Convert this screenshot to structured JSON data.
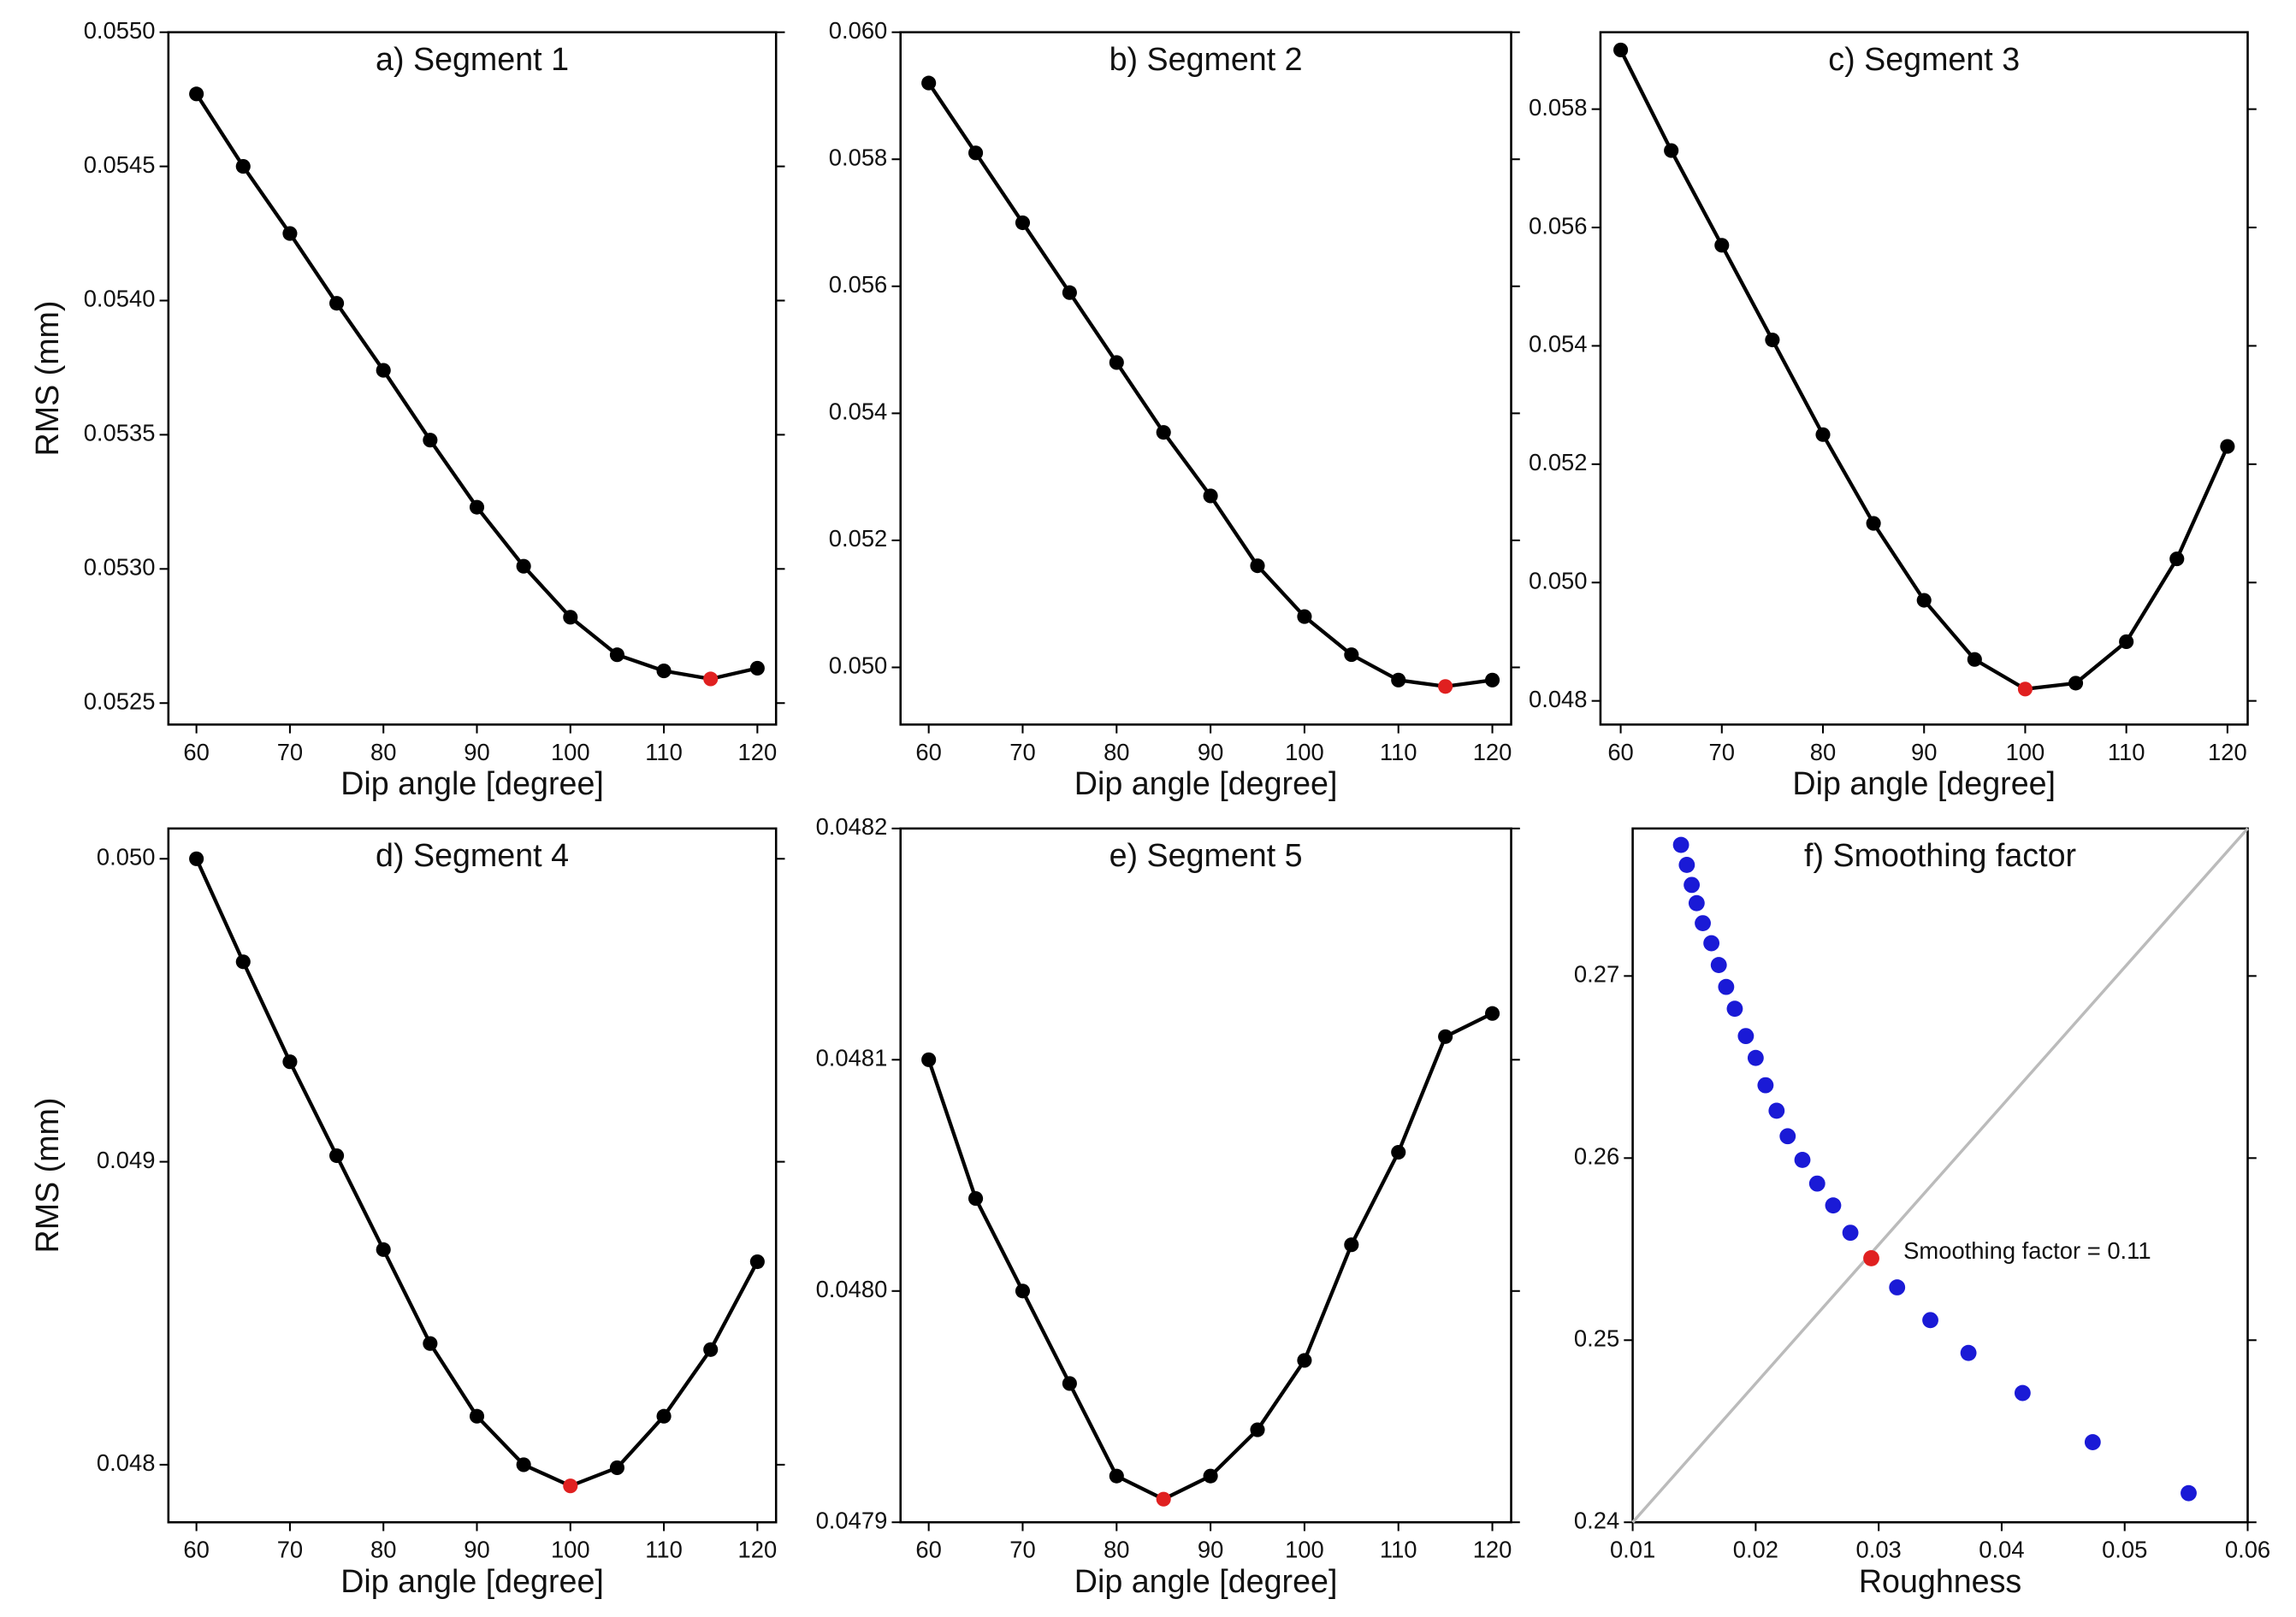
{
  "chart_data": [
    {
      "type": "line",
      "title": "a) Segment 1",
      "ylabel": "RMS (mm)",
      "xlabel": "Dip angle  [degree]",
      "x": [
        60,
        65,
        70,
        75,
        80,
        85,
        90,
        95,
        100,
        105,
        110,
        115,
        120
      ],
      "series": [
        {
          "color": "#000000",
          "values": [
            0.05477,
            0.0545,
            0.05425,
            0.05399,
            0.05374,
            0.05348,
            0.05323,
            0.05301,
            0.05282,
            0.05268,
            0.05262,
            0.05259,
            0.05263
          ]
        }
      ],
      "highlight": 11,
      "highlight_color": "#e02020",
      "xlim": [
        57,
        122
      ],
      "xticks": [
        60,
        70,
        80,
        90,
        100,
        110,
        120
      ],
      "ylim": [
        0.05242,
        0.055
      ],
      "yticks": [
        0.0525,
        {
          "value": 0.053,
          "label": "0.0530"
        },
        0.0535,
        {
          "value": 0.054,
          "label": "0.0540"
        },
        0.0545,
        {
          "value": 0.055,
          "label": "0.0550"
        }
      ]
    },
    {
      "type": "line",
      "title": "b) Segment 2",
      "xlabel": "Dip angle  [degree]",
      "x": [
        60,
        65,
        70,
        75,
        80,
        85,
        90,
        95,
        100,
        105,
        110,
        115,
        120
      ],
      "series": [
        {
          "color": "#000000",
          "values": [
            0.0592,
            0.0581,
            0.057,
            0.0559,
            0.0548,
            0.0537,
            0.0527,
            0.0516,
            0.0508,
            0.0502,
            0.0498,
            0.0497,
            0.0498
          ]
        }
      ],
      "highlight": 11,
      "highlight_color": "#e02020",
      "xlim": [
        57,
        122
      ],
      "xticks": [
        60,
        70,
        80,
        90,
        100,
        110,
        120
      ],
      "ylim": [
        0.0491,
        0.06
      ],
      "yticks": [
        {
          "value": 0.05,
          "label": "0.050"
        },
        0.052,
        0.054,
        0.056,
        0.058,
        {
          "value": 0.06,
          "label": "0.060"
        }
      ]
    },
    {
      "type": "line",
      "title": "c) Segment 3",
      "xlabel": "Dip angle  [degree]",
      "x": [
        60,
        65,
        70,
        75,
        80,
        85,
        90,
        95,
        100,
        105,
        110,
        115,
        120
      ],
      "series": [
        {
          "color": "#000000",
          "values": [
            0.059,
            0.0573,
            0.0557,
            0.0541,
            0.0525,
            0.051,
            0.0497,
            0.0487,
            0.0482,
            0.0483,
            0.049,
            0.0504,
            0.0523
          ]
        }
      ],
      "highlight": 8,
      "highlight_color": "#e02020",
      "xlim": [
        58,
        122
      ],
      "xticks": [
        60,
        70,
        80,
        90,
        100,
        110,
        120
      ],
      "ylim": [
        0.0476,
        0.0593
      ],
      "yticks": [
        0.048,
        {
          "value": 0.05,
          "label": "0.050"
        },
        0.052,
        0.054,
        0.056,
        0.058
      ]
    },
    {
      "type": "line",
      "title": "d) Segment 4",
      "ylabel": "RMS (mm)",
      "xlabel": "Dip angle  [degree]",
      "x": [
        60,
        65,
        70,
        75,
        80,
        85,
        90,
        95,
        100,
        105,
        110,
        115,
        120
      ],
      "series": [
        {
          "color": "#000000",
          "values": [
            0.05,
            0.04966,
            0.04933,
            0.04902,
            0.04871,
            0.0484,
            0.04816,
            0.048,
            0.04793,
            0.04799,
            0.04816,
            0.04838,
            0.04867
          ]
        }
      ],
      "highlight": 8,
      "highlight_color": "#e02020",
      "xlim": [
        57,
        122
      ],
      "xticks": [
        60,
        70,
        80,
        90,
        100,
        110,
        120
      ],
      "ylim": [
        0.04781,
        0.0501
      ],
      "yticks": [
        0.048,
        0.049,
        {
          "value": 0.05,
          "label": "0.050"
        }
      ]
    },
    {
      "type": "line",
      "title": "e) Segment 5",
      "xlabel": "Dip angle  [degree]",
      "x": [
        60,
        65,
        70,
        75,
        80,
        85,
        90,
        95,
        100,
        105,
        110,
        115,
        120
      ],
      "series": [
        {
          "color": "#000000",
          "values": [
            0.0481,
            0.04804,
            0.048,
            0.04796,
            0.04792,
            0.04791,
            0.04792,
            0.04794,
            0.04797,
            0.04802,
            0.04806,
            0.04811,
            0.04812
          ]
        }
      ],
      "highlight": 5,
      "highlight_color": "#e02020",
      "xlim": [
        57,
        122
      ],
      "xticks": [
        60,
        70,
        80,
        90,
        100,
        110,
        120
      ],
      "ylim": [
        0.0479,
        0.0482
      ],
      "yticks": [
        0.0479,
        {
          "value": 0.048,
          "label": "0.0480"
        },
        0.0481,
        0.0482
      ]
    },
    {
      "type": "scatter",
      "title": "f) Smoothing factor",
      "xlabel": "Roughness",
      "x": [
        0.01393,
        0.0144,
        0.0148,
        0.0152,
        0.0157,
        0.0164,
        0.017,
        0.0176,
        0.0183,
        0.0192,
        0.02,
        0.0208,
        0.0217,
        0.0226,
        0.0238,
        0.025,
        0.0263,
        0.0277,
        0.0294,
        0.0315,
        0.0342,
        0.0373,
        0.0417,
        0.0474,
        0.0552
      ],
      "series": [
        {
          "color": "#1a1ad6",
          "values": [
            0.2772,
            0.2761,
            0.275,
            0.274,
            0.2729,
            0.2718,
            0.2706,
            0.2694,
            0.2682,
            0.2667,
            0.2655,
            0.264,
            0.2626,
            0.2612,
            0.2599,
            0.2586,
            0.2574,
            0.2559,
            0.2545,
            0.2529,
            0.2511,
            0.2493,
            0.2471,
            0.2444,
            0.2416
          ]
        }
      ],
      "highlight": 18,
      "highlight_color": "#e02020",
      "annotation": "Smoothing factor = 0.11",
      "reference_line": {
        "x": [
          0.01,
          0.06
        ],
        "y": [
          0.24,
          0.2781
        ],
        "color": "#bbbbbb"
      },
      "xlim": [
        0.01,
        0.06
      ],
      "xticks": [
        0.01,
        0.02,
        0.03,
        0.04,
        0.05,
        0.06
      ],
      "ylim": [
        0.24,
        0.2781
      ],
      "yticks": [
        0.24,
        0.25,
        0.26,
        0.27
      ]
    }
  ]
}
